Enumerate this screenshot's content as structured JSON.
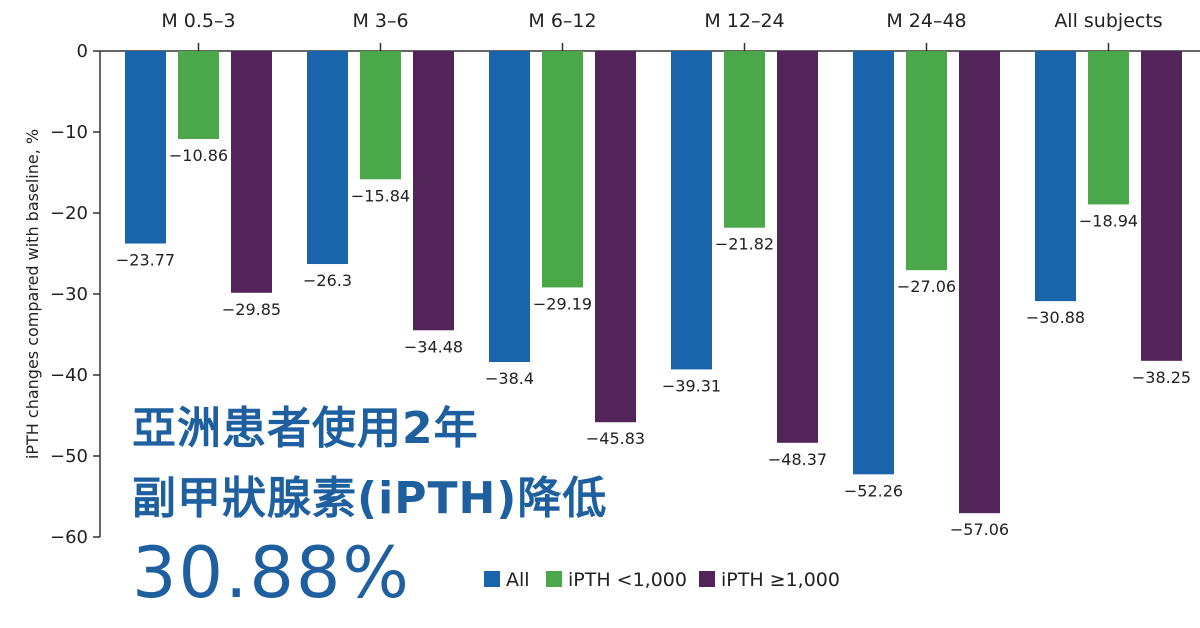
{
  "chart_data": {
    "type": "bar",
    "categories": [
      "M 0.5–3",
      "M 3–6",
      "M 6–12",
      "M 12–24",
      "M 24–48",
      "All subjects"
    ],
    "series": [
      {
        "name": "All",
        "color": "#1a64ab",
        "values": [
          -23.77,
          -26.3,
          -38.4,
          -39.31,
          -52.26,
          -30.88
        ],
        "labels": [
          "−23.77",
          "−26.3",
          "−38.4",
          "−39.31",
          "−52.26",
          "−30.88"
        ]
      },
      {
        "name": "iPTH <1,000",
        "color": "#4aa84a",
        "values": [
          -10.86,
          -15.84,
          -29.19,
          -21.82,
          -27.06,
          -18.94
        ],
        "labels": [
          "−10.86",
          "−15.84",
          "−29.19",
          "−21.82",
          "−27.06",
          "−18.94"
        ]
      },
      {
        "name": "iPTH ≥1,000",
        "color": "#52245a",
        "values": [
          -29.85,
          -34.48,
          -45.83,
          -48.37,
          -57.06,
          -38.25
        ],
        "labels": [
          "−29.85",
          "−34.48",
          "−45.83",
          "−48.37",
          "−57.06",
          "−38.25"
        ]
      }
    ],
    "ylabel": "iPTH changes compared with baseline, %",
    "ylim": [
      -60,
      0
    ],
    "yticks": [
      0,
      -10,
      -20,
      -30,
      -40,
      -50,
      -60
    ],
    "ytick_labels": [
      "0",
      "−10",
      "−20",
      "−30",
      "−40",
      "−50",
      "−60"
    ],
    "xaxis_position": "top",
    "legend_position": "bottom"
  },
  "overlay": {
    "line1": "亞洲患者使用2年",
    "line2": "副甲狀腺素(iPTH)降低",
    "line3": "30.88%"
  }
}
